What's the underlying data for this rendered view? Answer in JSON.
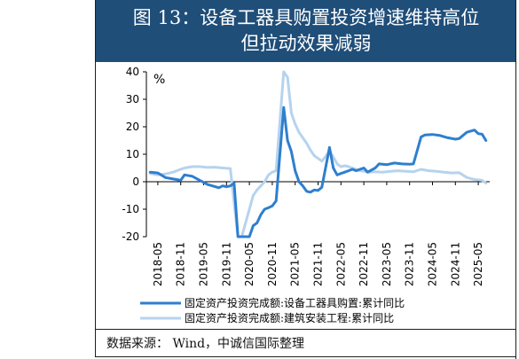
{
  "title": {
    "line1": "图 13：设备工器具购置投资增速维持高位",
    "line2": "但拉动效果减弱"
  },
  "source": {
    "label": "数据来源：",
    "text": " Wind，中诚信国际整理"
  },
  "colors": {
    "title_bg": "#1f4e79",
    "series1": "#2e7fcf",
    "series2": "#b6d3ee"
  },
  "chart_data": {
    "type": "line",
    "unit_label": "%",
    "ylim": [
      -20,
      40
    ],
    "yticks": [
      -20,
      -10,
      0,
      10,
      20,
      30,
      40
    ],
    "xlim": [
      "2018-02",
      "2025-08"
    ],
    "xticks": [
      "2018-05",
      "2018-11",
      "2019-05",
      "2019-11",
      "2020-05",
      "2020-11",
      "2021-05",
      "2021-11",
      "2022-05",
      "2022-11",
      "2023-05",
      "2023-11",
      "2024-05",
      "2024-11",
      "2025-05"
    ],
    "grid": false,
    "legend_position": "bottom",
    "series": [
      {
        "name": "固定资产投资完成额:设备工器具购置:累计同比",
        "color": "#2e7fcf",
        "points": [
          [
            "2018-03",
            3.5
          ],
          [
            "2018-05",
            3.2
          ],
          [
            "2018-07",
            1.5
          ],
          [
            "2018-09",
            1.0
          ],
          [
            "2018-11",
            0.5
          ],
          [
            "2018-12",
            2.5
          ],
          [
            "2019-02",
            2.0
          ],
          [
            "2019-04",
            0.5
          ],
          [
            "2019-06",
            -1.0
          ],
          [
            "2019-08",
            -1.8
          ],
          [
            "2019-09",
            -2.2
          ],
          [
            "2019-10",
            -1.5
          ],
          [
            "2019-11",
            -1.8
          ],
          [
            "2019-12",
            -1.5
          ],
          [
            "2020-01",
            -0.5
          ],
          [
            "2020-02",
            -23
          ],
          [
            "2020-03",
            -27
          ],
          [
            "2020-04",
            -25
          ],
          [
            "2020-05",
            -20
          ],
          [
            "2020-06",
            -16
          ],
          [
            "2020-07",
            -15
          ],
          [
            "2020-08",
            -12
          ],
          [
            "2020-09",
            -10
          ],
          [
            "2020-10",
            -9.5
          ],
          [
            "2020-11",
            -8.8
          ],
          [
            "2020-12",
            -7.0
          ],
          [
            "2021-02",
            27
          ],
          [
            "2021-03",
            15
          ],
          [
            "2021-04",
            11
          ],
          [
            "2021-05",
            4
          ],
          [
            "2021-06",
            0
          ],
          [
            "2021-07",
            -1.5
          ],
          [
            "2021-08",
            -3.5
          ],
          [
            "2021-09",
            -3.8
          ],
          [
            "2021-10",
            -3.0
          ],
          [
            "2021-11",
            -3.2
          ],
          [
            "2021-12",
            -2.0
          ],
          [
            "2022-02",
            12.5
          ],
          [
            "2022-03",
            5.0
          ],
          [
            "2022-04",
            2.5
          ],
          [
            "2022-05",
            3.0
          ],
          [
            "2022-06",
            3.5
          ],
          [
            "2022-07",
            4.0
          ],
          [
            "2022-08",
            4.5
          ],
          [
            "2022-09",
            4.0
          ],
          [
            "2022-10",
            4.5
          ],
          [
            "2022-11",
            5.0
          ],
          [
            "2022-12",
            3.5
          ],
          [
            "2023-02",
            5.0
          ],
          [
            "2023-03",
            6.5
          ],
          [
            "2023-05",
            6.2
          ],
          [
            "2023-07",
            6.8
          ],
          [
            "2023-09",
            6.5
          ],
          [
            "2023-11",
            6.4
          ],
          [
            "2023-12",
            6.5
          ],
          [
            "2024-02",
            16.3
          ],
          [
            "2024-03",
            17.0
          ],
          [
            "2024-05",
            17.2
          ],
          [
            "2024-07",
            16.8
          ],
          [
            "2024-09",
            16.0
          ],
          [
            "2024-11",
            15.5
          ],
          [
            "2024-12",
            15.7
          ],
          [
            "2025-02",
            18.0
          ],
          [
            "2025-04",
            18.8
          ],
          [
            "2025-05",
            17.5
          ],
          [
            "2025-06",
            17.3
          ],
          [
            "2025-07",
            15.0
          ]
        ]
      },
      {
        "name": "固定资产投资完成额:建筑安装工程:累计同比",
        "color": "#b6d3ee",
        "points": [
          [
            "2018-03",
            3.0
          ],
          [
            "2018-05",
            2.5
          ],
          [
            "2018-07",
            2.8
          ],
          [
            "2018-09",
            3.5
          ],
          [
            "2018-11",
            4.5
          ],
          [
            "2018-12",
            5.0
          ],
          [
            "2019-02",
            5.5
          ],
          [
            "2019-04",
            5.5
          ],
          [
            "2019-06",
            5.2
          ],
          [
            "2019-08",
            5.3
          ],
          [
            "2019-10",
            5.0
          ],
          [
            "2019-12",
            4.8
          ],
          [
            "2020-02",
            -26
          ],
          [
            "2020-03",
            -22
          ],
          [
            "2020-04",
            -15
          ],
          [
            "2020-05",
            -10
          ],
          [
            "2020-06",
            -5
          ],
          [
            "2020-07",
            -3.0
          ],
          [
            "2020-08",
            -1.5
          ],
          [
            "2020-09",
            0
          ],
          [
            "2020-10",
            2.5
          ],
          [
            "2020-11",
            3.5
          ],
          [
            "2020-12",
            4.0
          ],
          [
            "2021-02",
            40
          ],
          [
            "2021-03",
            38
          ],
          [
            "2021-04",
            25
          ],
          [
            "2021-05",
            21
          ],
          [
            "2021-06",
            18
          ],
          [
            "2021-07",
            16
          ],
          [
            "2021-08",
            14
          ],
          [
            "2021-09",
            11.5
          ],
          [
            "2021-10",
            9.5
          ],
          [
            "2021-11",
            8.5
          ],
          [
            "2021-12",
            7.5
          ],
          [
            "2022-02",
            11.0
          ],
          [
            "2022-03",
            9.0
          ],
          [
            "2022-04",
            6.5
          ],
          [
            "2022-05",
            5.5
          ],
          [
            "2022-06",
            5.8
          ],
          [
            "2022-07",
            5.5
          ],
          [
            "2022-08",
            5.0
          ],
          [
            "2022-09",
            4.5
          ],
          [
            "2022-10",
            4.0
          ],
          [
            "2022-11",
            3.8
          ],
          [
            "2022-12",
            3.5
          ],
          [
            "2023-02",
            3.6
          ],
          [
            "2023-04",
            3.5
          ],
          [
            "2023-06",
            3.8
          ],
          [
            "2023-08",
            4.0
          ],
          [
            "2023-10",
            3.8
          ],
          [
            "2023-12",
            3.6
          ],
          [
            "2024-02",
            4.5
          ],
          [
            "2024-04",
            4.0
          ],
          [
            "2024-06",
            3.8
          ],
          [
            "2024-08",
            3.5
          ],
          [
            "2024-10",
            3.2
          ],
          [
            "2024-12",
            3.3
          ],
          [
            "2025-02",
            1.5
          ],
          [
            "2025-04",
            0.8
          ],
          [
            "2025-06",
            0.5
          ],
          [
            "2025-07",
            -0.5
          ]
        ]
      }
    ]
  }
}
